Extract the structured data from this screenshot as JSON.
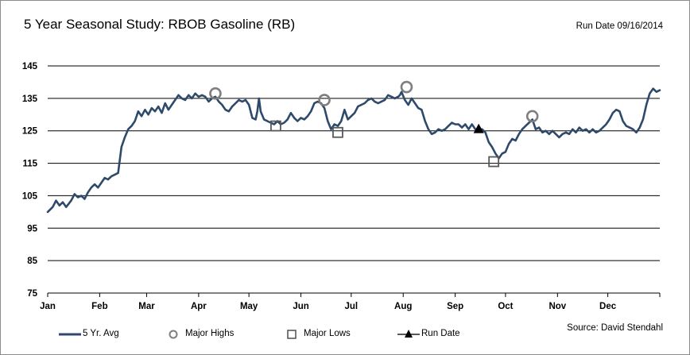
{
  "header": {
    "title": "5 Year Seasonal Study: RBOB Gasoline (RB)",
    "run_date": "Run Date 09/16/2014"
  },
  "footer": {
    "source": "Source:  David Stendahl"
  },
  "colors": {
    "series": "#2e4a6b",
    "high_marker": "#7f7f7f",
    "low_marker": "#595959",
    "run_marker": "#000000",
    "grid": "#000000"
  },
  "chart_data": {
    "type": "line",
    "title": "5 Year Seasonal Study: RBOB Gasoline (RB)",
    "xlabel": "",
    "ylabel": "",
    "ylim": [
      75,
      145
    ],
    "yticks": [
      75,
      85,
      95,
      105,
      115,
      125,
      135,
      145
    ],
    "x_unit": "day of year",
    "xlim": [
      0,
      365
    ],
    "xticks": [
      {
        "label": "Jan",
        "x": 0
      },
      {
        "label": "Feb",
        "x": 31
      },
      {
        "label": "Mar",
        "x": 59
      },
      {
        "label": "Apr",
        "x": 90
      },
      {
        "label": "May",
        "x": 120
      },
      {
        "label": "Jun",
        "x": 151
      },
      {
        "label": "Jul",
        "x": 181
      },
      {
        "label": "Aug",
        "x": 212
      },
      {
        "label": "Sep",
        "x": 243
      },
      {
        "label": "Oct",
        "x": 273
      },
      {
        "label": "Nov",
        "x": 304
      },
      {
        "label": "Dec",
        "x": 334
      }
    ],
    "grid": true,
    "legend_position": "bottom",
    "series": [
      {
        "name": "5 Yr. Avg",
        "points": [
          [
            0,
            100
          ],
          [
            3,
            101.5
          ],
          [
            5,
            103.5
          ],
          [
            7,
            102
          ],
          [
            9,
            103
          ],
          [
            11,
            101.5
          ],
          [
            14,
            103.5
          ],
          [
            16,
            105.5
          ],
          [
            18,
            104.5
          ],
          [
            20,
            105
          ],
          [
            22,
            104
          ],
          [
            24,
            106
          ],
          [
            26,
            107.5
          ],
          [
            28,
            108.5
          ],
          [
            30,
            107.5
          ],
          [
            32,
            109
          ],
          [
            34,
            110.5
          ],
          [
            36,
            110
          ],
          [
            38,
            111
          ],
          [
            40,
            111.5
          ],
          [
            42,
            112
          ],
          [
            44,
            120
          ],
          [
            46,
            123
          ],
          [
            48,
            125.5
          ],
          [
            50,
            126.5
          ],
          [
            52,
            128
          ],
          [
            54,
            131
          ],
          [
            56,
            129.5
          ],
          [
            58,
            131.5
          ],
          [
            60,
            130
          ],
          [
            62,
            132
          ],
          [
            64,
            131
          ],
          [
            66,
            132.5
          ],
          [
            68,
            130.5
          ],
          [
            70,
            133.5
          ],
          [
            72,
            131.5
          ],
          [
            74,
            133
          ],
          [
            76,
            134.5
          ],
          [
            78,
            136
          ],
          [
            80,
            135
          ],
          [
            82,
            134.5
          ],
          [
            84,
            136
          ],
          [
            86,
            135
          ],
          [
            88,
            136.5
          ],
          [
            90,
            135.5
          ],
          [
            92,
            136
          ],
          [
            94,
            135.5
          ],
          [
            96,
            134
          ],
          [
            98,
            135
          ],
          [
            100,
            135.5
          ],
          [
            102,
            134
          ],
          [
            104,
            133
          ],
          [
            106,
            131.5
          ],
          [
            108,
            131
          ],
          [
            110,
            132.5
          ],
          [
            112,
            133.5
          ],
          [
            114,
            134.5
          ],
          [
            116,
            134
          ],
          [
            118,
            134.5
          ],
          [
            120,
            133
          ],
          [
            122,
            129
          ],
          [
            124,
            128.5
          ],
          [
            125,
            131
          ],
          [
            126,
            135
          ],
          [
            127,
            131
          ],
          [
            129,
            128.5
          ],
          [
            131,
            128
          ],
          [
            133,
            127.5
          ],
          [
            135,
            127
          ],
          [
            137,
            128
          ],
          [
            139,
            127
          ],
          [
            141,
            127.5
          ],
          [
            143,
            128.5
          ],
          [
            145,
            130.5
          ],
          [
            147,
            129
          ],
          [
            149,
            128
          ],
          [
            151,
            129
          ],
          [
            153,
            128.5
          ],
          [
            155,
            129.5
          ],
          [
            157,
            131
          ],
          [
            159,
            133.5
          ],
          [
            161,
            134
          ],
          [
            163,
            133.5
          ],
          [
            165,
            132
          ],
          [
            167,
            128
          ],
          [
            169,
            125.5
          ],
          [
            171,
            127
          ],
          [
            173,
            126.5
          ],
          [
            175,
            128
          ],
          [
            177,
            131.5
          ],
          [
            179,
            128.5
          ],
          [
            181,
            129.5
          ],
          [
            183,
            130.5
          ],
          [
            185,
            132.5
          ],
          [
            187,
            133
          ],
          [
            189,
            133.5
          ],
          [
            191,
            134.5
          ],
          [
            193,
            135
          ],
          [
            195,
            134
          ],
          [
            197,
            133.5
          ],
          [
            199,
            134
          ],
          [
            201,
            134.5
          ],
          [
            203,
            136
          ],
          [
            205,
            135.5
          ],
          [
            207,
            135
          ],
          [
            209,
            135.5
          ],
          [
            210,
            136
          ],
          [
            211,
            137
          ],
          [
            213,
            134.5
          ],
          [
            215,
            133
          ],
          [
            217,
            135
          ],
          [
            219,
            133.5
          ],
          [
            221,
            132
          ],
          [
            223,
            131.5
          ],
          [
            225,
            128
          ],
          [
            227,
            125.5
          ],
          [
            229,
            124
          ],
          [
            231,
            124.5
          ],
          [
            233,
            125.5
          ],
          [
            235,
            125
          ],
          [
            237,
            125.5
          ],
          [
            239,
            126.5
          ],
          [
            241,
            127.5
          ],
          [
            243,
            127
          ],
          [
            245,
            127
          ],
          [
            247,
            126
          ],
          [
            249,
            127
          ],
          [
            251,
            125.5
          ],
          [
            253,
            127
          ],
          [
            255,
            125.5
          ],
          [
            257,
            125
          ],
          [
            259,
            125.5
          ],
          [
            261,
            124.5
          ],
          [
            263,
            121.5
          ],
          [
            265,
            120
          ],
          [
            267,
            118
          ],
          [
            269,
            116.5
          ],
          [
            271,
            118
          ],
          [
            273,
            118.5
          ],
          [
            275,
            121
          ],
          [
            277,
            122.5
          ],
          [
            279,
            122
          ],
          [
            281,
            124
          ],
          [
            283,
            125.5
          ],
          [
            285,
            126.5
          ],
          [
            287,
            127.5
          ],
          [
            289,
            128.5
          ],
          [
            291,
            125.5
          ],
          [
            293,
            126
          ],
          [
            295,
            124.5
          ],
          [
            297,
            125
          ],
          [
            299,
            124
          ],
          [
            301,
            125
          ],
          [
            303,
            124
          ],
          [
            305,
            123
          ],
          [
            307,
            124
          ],
          [
            309,
            124.5
          ],
          [
            311,
            124
          ],
          [
            313,
            125.5
          ],
          [
            315,
            124.5
          ],
          [
            317,
            126
          ],
          [
            319,
            125
          ],
          [
            321,
            125.5
          ],
          [
            323,
            124.5
          ],
          [
            325,
            125.5
          ],
          [
            327,
            124.5
          ],
          [
            329,
            125
          ],
          [
            331,
            126
          ],
          [
            333,
            127
          ],
          [
            335,
            128.5
          ],
          [
            337,
            130.5
          ],
          [
            339,
            131.5
          ],
          [
            341,
            131
          ],
          [
            343,
            128
          ],
          [
            345,
            126.5
          ],
          [
            347,
            126
          ],
          [
            349,
            125.5
          ],
          [
            351,
            124.5
          ],
          [
            353,
            126
          ],
          [
            355,
            128.5
          ],
          [
            357,
            133
          ],
          [
            359,
            136.5
          ],
          [
            361,
            138
          ],
          [
            363,
            137
          ],
          [
            365,
            137.5
          ]
        ]
      },
      {
        "name": "Major Highs",
        "marker": "circle",
        "points": [
          [
            100,
            136.5
          ],
          [
            165,
            134.5
          ],
          [
            214,
            138.5
          ],
          [
            289,
            129.5
          ]
        ]
      },
      {
        "name": "Major Lows",
        "marker": "square",
        "points": [
          [
            136,
            126.5
          ],
          [
            173,
            124.5
          ],
          [
            266,
            115.5
          ]
        ]
      },
      {
        "name": "Run Date",
        "marker": "triangle",
        "points": [
          [
            257,
            125.5
          ]
        ]
      }
    ]
  }
}
